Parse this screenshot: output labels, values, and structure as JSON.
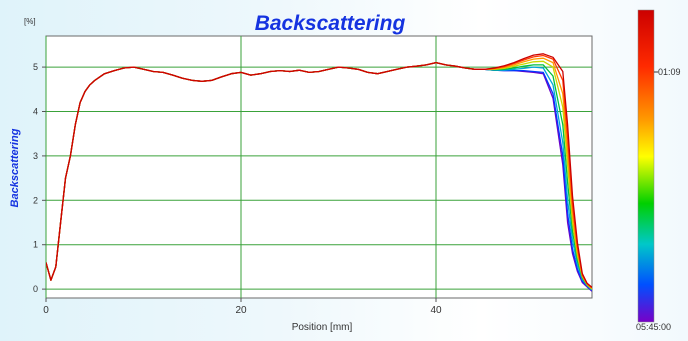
{
  "chart_data": {
    "type": "line",
    "title": "Backscattering",
    "ylabel": "Backscattering",
    "xlabel": "Position [mm]",
    "yunit": "[%]",
    "xlim": [
      0,
      56
    ],
    "ylim": [
      -0.2,
      5.7
    ],
    "xticks": [
      0,
      20,
      40
    ],
    "yticks": [
      0,
      1,
      2,
      3,
      4,
      5
    ],
    "grid": true,
    "colorbar": {
      "labels": [
        "01:09",
        "05:45:00"
      ],
      "colors": [
        "#cc0000",
        "#ff2a00",
        "#ff9900",
        "#ffff00",
        "#00d000",
        "#00c8c8",
        "#0050ff",
        "#7800c8"
      ]
    },
    "profile_x": [
      0,
      0.5,
      1,
      1.5,
      2,
      2.5,
      3,
      3.5,
      4,
      4.5,
      5,
      6,
      7,
      8,
      9,
      10,
      11,
      12,
      13,
      14,
      15,
      16,
      17,
      18,
      19,
      20,
      21,
      22,
      23,
      24,
      25,
      26,
      27,
      28,
      29,
      30,
      31,
      32,
      33,
      34,
      35,
      36,
      37,
      38,
      39,
      40,
      41,
      42,
      43,
      44,
      45,
      46,
      47,
      48,
      49,
      50,
      51,
      52,
      53,
      53.5,
      54,
      54.5,
      55,
      55.5,
      56
    ],
    "series": [
      {
        "values": [
          0.6,
          0.2,
          0.5,
          1.5,
          2.5,
          3.0,
          3.7,
          4.2,
          4.45,
          4.6,
          4.7,
          4.85,
          4.92,
          4.98,
          5.0,
          4.95,
          4.9,
          4.88,
          4.82,
          4.75,
          4.7,
          4.68,
          4.7,
          4.78,
          4.85,
          4.88,
          4.82,
          4.85,
          4.9,
          4.92,
          4.9,
          4.93,
          4.88,
          4.9,
          4.95,
          5.0,
          4.98,
          4.95,
          4.88,
          4.85,
          4.9,
          4.95,
          5.0,
          5.02,
          5.05,
          5.1,
          5.05,
          5.02,
          4.98,
          4.95,
          4.95,
          4.93,
          4.92,
          4.92,
          4.9,
          4.88,
          4.85,
          4.3,
          2.8,
          1.5,
          0.8,
          0.4,
          0.15,
          0.05,
          -0.05
        ]
      },
      {
        "values": [
          0.6,
          0.2,
          0.5,
          1.5,
          2.5,
          3.0,
          3.7,
          4.2,
          4.45,
          4.6,
          4.7,
          4.85,
          4.92,
          4.98,
          5.0,
          4.95,
          4.9,
          4.88,
          4.82,
          4.75,
          4.7,
          4.68,
          4.7,
          4.78,
          4.85,
          4.88,
          4.82,
          4.85,
          4.9,
          4.92,
          4.9,
          4.93,
          4.88,
          4.9,
          4.95,
          5.0,
          4.98,
          4.95,
          4.88,
          4.85,
          4.9,
          4.95,
          5.0,
          5.02,
          5.05,
          5.1,
          5.05,
          5.02,
          4.98,
          4.95,
          4.95,
          4.93,
          4.92,
          4.92,
          4.92,
          4.9,
          4.88,
          4.4,
          3.0,
          1.7,
          0.9,
          0.45,
          0.18,
          0.07,
          -0.03
        ]
      },
      {
        "values": [
          0.6,
          0.2,
          0.5,
          1.5,
          2.5,
          3.0,
          3.7,
          4.2,
          4.45,
          4.6,
          4.7,
          4.85,
          4.92,
          4.98,
          5.0,
          4.95,
          4.9,
          4.88,
          4.82,
          4.75,
          4.7,
          4.68,
          4.7,
          4.78,
          4.85,
          4.88,
          4.82,
          4.85,
          4.9,
          4.92,
          4.9,
          4.93,
          4.88,
          4.9,
          4.95,
          5.0,
          4.98,
          4.95,
          4.88,
          4.85,
          4.9,
          4.95,
          5.0,
          5.02,
          5.05,
          5.1,
          5.05,
          5.02,
          4.98,
          4.95,
          4.95,
          4.93,
          4.93,
          4.95,
          4.97,
          5.0,
          4.98,
          4.6,
          3.3,
          2.0,
          1.1,
          0.55,
          0.22,
          0.08,
          -0.02
        ]
      },
      {
        "values": [
          0.6,
          0.2,
          0.5,
          1.5,
          2.5,
          3.0,
          3.7,
          4.2,
          4.45,
          4.6,
          4.7,
          4.85,
          4.92,
          4.98,
          5.0,
          4.95,
          4.9,
          4.88,
          4.82,
          4.75,
          4.7,
          4.68,
          4.7,
          4.78,
          4.85,
          4.88,
          4.82,
          4.85,
          4.9,
          4.92,
          4.9,
          4.93,
          4.88,
          4.9,
          4.95,
          5.0,
          4.98,
          4.95,
          4.88,
          4.85,
          4.9,
          4.95,
          5.0,
          5.02,
          5.05,
          5.1,
          5.05,
          5.02,
          4.98,
          4.95,
          4.95,
          4.94,
          4.95,
          4.98,
          5.02,
          5.05,
          5.05,
          4.8,
          3.7,
          2.4,
          1.3,
          0.65,
          0.25,
          0.09,
          0.0
        ]
      },
      {
        "values": [
          0.6,
          0.2,
          0.5,
          1.5,
          2.5,
          3.0,
          3.7,
          4.2,
          4.45,
          4.6,
          4.7,
          4.85,
          4.92,
          4.98,
          5.0,
          4.95,
          4.9,
          4.88,
          4.82,
          4.75,
          4.7,
          4.68,
          4.7,
          4.78,
          4.85,
          4.88,
          4.82,
          4.85,
          4.9,
          4.92,
          4.9,
          4.93,
          4.88,
          4.9,
          4.95,
          5.0,
          4.98,
          4.95,
          4.88,
          4.85,
          4.9,
          4.95,
          5.0,
          5.02,
          5.05,
          5.1,
          5.05,
          5.02,
          4.98,
          4.95,
          4.95,
          4.95,
          4.97,
          5.02,
          5.07,
          5.12,
          5.13,
          5.0,
          4.1,
          2.8,
          1.5,
          0.75,
          0.28,
          0.1,
          0.0
        ]
      },
      {
        "values": [
          0.6,
          0.2,
          0.5,
          1.5,
          2.5,
          3.0,
          3.7,
          4.2,
          4.45,
          4.6,
          4.7,
          4.85,
          4.92,
          4.98,
          5.0,
          4.95,
          4.9,
          4.88,
          4.82,
          4.75,
          4.7,
          4.68,
          4.7,
          4.78,
          4.85,
          4.88,
          4.82,
          4.85,
          4.9,
          4.92,
          4.9,
          4.93,
          4.88,
          4.9,
          4.95,
          5.0,
          4.98,
          4.95,
          4.88,
          4.85,
          4.9,
          4.95,
          5.0,
          5.02,
          5.05,
          5.1,
          5.05,
          5.02,
          4.98,
          4.95,
          4.95,
          4.96,
          4.99,
          5.05,
          5.12,
          5.18,
          5.2,
          5.1,
          4.4,
          3.1,
          1.7,
          0.85,
          0.3,
          0.11,
          0.02
        ]
      },
      {
        "values": [
          0.6,
          0.2,
          0.5,
          1.5,
          2.5,
          3.0,
          3.7,
          4.2,
          4.45,
          4.6,
          4.7,
          4.85,
          4.92,
          4.98,
          5.0,
          4.95,
          4.9,
          4.88,
          4.82,
          4.75,
          4.7,
          4.68,
          4.7,
          4.78,
          4.85,
          4.88,
          4.82,
          4.85,
          4.9,
          4.92,
          4.9,
          4.93,
          4.88,
          4.9,
          4.95,
          5.0,
          4.98,
          4.95,
          4.88,
          4.85,
          4.9,
          4.95,
          5.0,
          5.02,
          5.05,
          5.1,
          5.05,
          5.02,
          4.98,
          4.95,
          4.95,
          4.97,
          5.01,
          5.08,
          5.16,
          5.23,
          5.26,
          5.18,
          4.7,
          3.4,
          1.9,
          0.95,
          0.32,
          0.12,
          0.03
        ]
      },
      {
        "values": [
          0.6,
          0.2,
          0.5,
          1.5,
          2.5,
          3.0,
          3.7,
          4.2,
          4.45,
          4.6,
          4.7,
          4.85,
          4.92,
          4.98,
          5.0,
          4.95,
          4.9,
          4.88,
          4.82,
          4.75,
          4.7,
          4.68,
          4.7,
          4.78,
          4.85,
          4.88,
          4.82,
          4.85,
          4.9,
          4.92,
          4.9,
          4.93,
          4.88,
          4.9,
          4.95,
          5.0,
          4.98,
          4.95,
          4.88,
          4.85,
          4.9,
          4.95,
          5.0,
          5.02,
          5.05,
          5.1,
          5.05,
          5.02,
          4.98,
          4.95,
          4.95,
          4.98,
          5.03,
          5.1,
          5.19,
          5.27,
          5.3,
          5.22,
          4.9,
          3.7,
          2.1,
          1.05,
          0.35,
          0.13,
          0.04
        ]
      }
    ]
  }
}
